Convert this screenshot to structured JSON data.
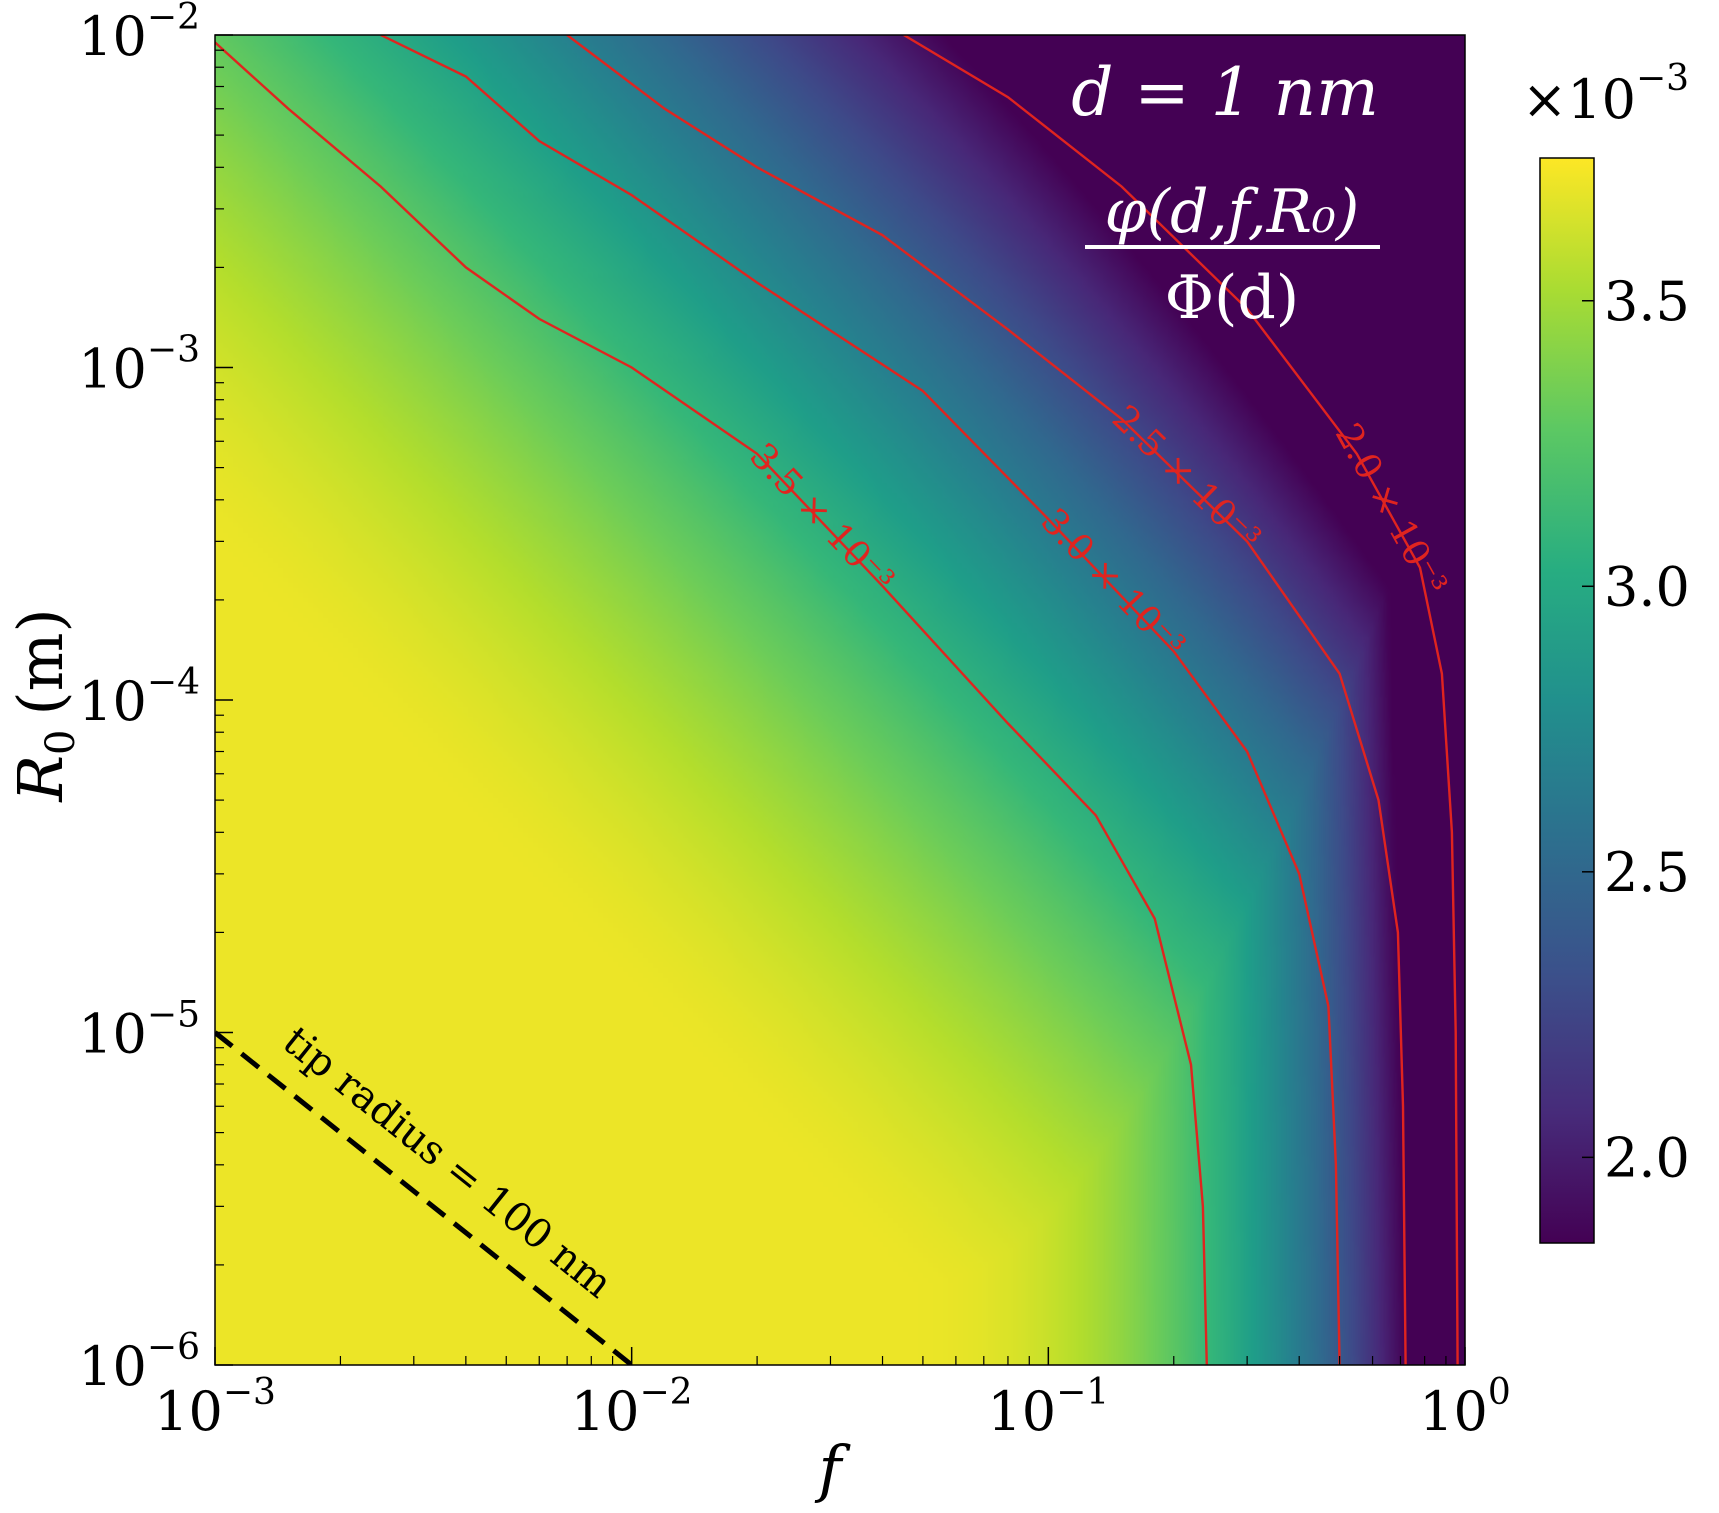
{
  "chart_data": {
    "type": "heatmap",
    "xlabel": "f",
    "ylabel": "R",
    "ylabel_sub": "0",
    "ylabel_unit": "(m)",
    "x_scale": "log",
    "y_scale": "log",
    "xlim": [
      0.001,
      1
    ],
    "ylim": [
      1e-06,
      0.01
    ],
    "x_ticks": [
      {
        "base": "10",
        "exp": "−3"
      },
      {
        "base": "10",
        "exp": "−2"
      },
      {
        "base": "10",
        "exp": "−1"
      },
      {
        "base": "10",
        "exp": "0"
      }
    ],
    "y_ticks": [
      {
        "base": "10",
        "exp": "−6"
      },
      {
        "base": "10",
        "exp": "−5"
      },
      {
        "base": "10",
        "exp": "−4"
      },
      {
        "base": "10",
        "exp": "−3"
      },
      {
        "base": "10",
        "exp": "−2"
      }
    ],
    "colormap": "viridis",
    "colorbar": {
      "range": [
        0.00185,
        0.00375
      ],
      "multiplier": "×10",
      "multiplier_exp": "−3",
      "ticks": [
        "2.0",
        "2.5",
        "3.0",
        "3.5"
      ],
      "tick_values": [
        0.002,
        0.0025,
        0.003,
        0.0035
      ]
    },
    "annotations": {
      "d_label": "d = 1 nm",
      "ratio_numerator": "φ(d,f,R₀)",
      "ratio_denominator": "Φ(d)"
    },
    "contours": [
      {
        "label": "3.5 × 10⁻³",
        "value": 0.0035,
        "color": "#e0241f",
        "points": [
          [
            0.001,
            0.0095
          ],
          [
            0.0015,
            0.006
          ],
          [
            0.0025,
            0.0035
          ],
          [
            0.004,
            0.002
          ],
          [
            0.006,
            0.0014
          ],
          [
            0.01,
            0.001
          ],
          [
            0.02,
            0.00055
          ],
          [
            0.04,
            0.00022
          ],
          [
            0.08,
            8.5e-05
          ],
          [
            0.13,
            4.5e-05
          ],
          [
            0.18,
            2.2e-05
          ],
          [
            0.22,
            8e-06
          ],
          [
            0.235,
            3e-06
          ],
          [
            0.24,
            1e-06
          ]
        ]
      },
      {
        "label": "3.0 × 10⁻³",
        "value": 0.003,
        "color": "#e0241f",
        "points": [
          [
            0.0025,
            0.01
          ],
          [
            0.004,
            0.0075
          ],
          [
            0.006,
            0.0048
          ],
          [
            0.01,
            0.0033
          ],
          [
            0.02,
            0.0018
          ],
          [
            0.05,
            0.00085
          ],
          [
            0.1,
            0.00035
          ],
          [
            0.2,
            0.00014
          ],
          [
            0.3,
            7e-05
          ],
          [
            0.4,
            3e-05
          ],
          [
            0.47,
            1.2e-05
          ],
          [
            0.49,
            4e-06
          ],
          [
            0.5,
            1e-06
          ]
        ]
      },
      {
        "label": "2.5 × 10⁻³",
        "value": 0.0025,
        "color": "#e0241f",
        "points": [
          [
            0.007,
            0.01
          ],
          [
            0.012,
            0.006
          ],
          [
            0.02,
            0.004
          ],
          [
            0.04,
            0.0025
          ],
          [
            0.08,
            0.0013
          ],
          [
            0.15,
            0.0007
          ],
          [
            0.3,
            0.0003
          ],
          [
            0.5,
            0.00012
          ],
          [
            0.62,
            5e-05
          ],
          [
            0.69,
            2e-05
          ],
          [
            0.71,
            6e-06
          ],
          [
            0.72,
            1e-06
          ]
        ]
      },
      {
        "label": "2.0 × 10⁻³",
        "value": 0.002,
        "color": "#e0241f",
        "points": [
          [
            0.045,
            0.01
          ],
          [
            0.08,
            0.0065
          ],
          [
            0.15,
            0.0035
          ],
          [
            0.3,
            0.0015
          ],
          [
            0.55,
            0.00055
          ],
          [
            0.78,
            0.00025
          ],
          [
            0.88,
            0.00012
          ],
          [
            0.93,
            4e-05
          ],
          [
            0.95,
            1e-05
          ],
          [
            0.96,
            1e-06
          ]
        ]
      }
    ],
    "reference_line": {
      "label": "tip radius = 100 nm",
      "style": "dashed",
      "color": "#000000",
      "points": [
        [
          0.001,
          1e-05
        ],
        [
          0.01,
          1e-06
        ]
      ]
    }
  }
}
